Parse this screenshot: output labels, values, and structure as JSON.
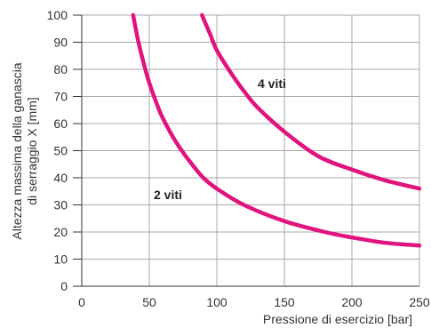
{
  "chart_data": {
    "type": "line",
    "xlabel": "Pressione di esercizio [bar]",
    "ylabel_line1": "Altezza massima della ganascia",
    "ylabel_line2": "di serraggio X [mm]",
    "xlim": [
      0,
      250
    ],
    "ylim": [
      0,
      100
    ],
    "x_ticks": [
      0,
      50,
      100,
      150,
      200,
      250
    ],
    "y_ticks": [
      0,
      10,
      20,
      30,
      40,
      50,
      60,
      70,
      80,
      90,
      100
    ],
    "grid": true,
    "line_color": "#e0147e",
    "series": [
      {
        "name": "2 viti",
        "x": [
          38,
          42,
          46,
          50,
          55,
          60,
          70,
          80,
          90,
          100,
          120,
          150,
          180,
          200,
          225,
          250
        ],
        "y": [
          100,
          90,
          82,
          75,
          68,
          62,
          53,
          46,
          40,
          36,
          30,
          24,
          20,
          18,
          16,
          15
        ]
      },
      {
        "name": "4 viti",
        "x": [
          89,
          95,
          100,
          110,
          120,
          130,
          150,
          175,
          200,
          225,
          250
        ],
        "y": [
          100,
          93,
          87,
          79,
          72,
          66,
          57,
          48,
          43,
          39,
          36
        ]
      }
    ]
  }
}
